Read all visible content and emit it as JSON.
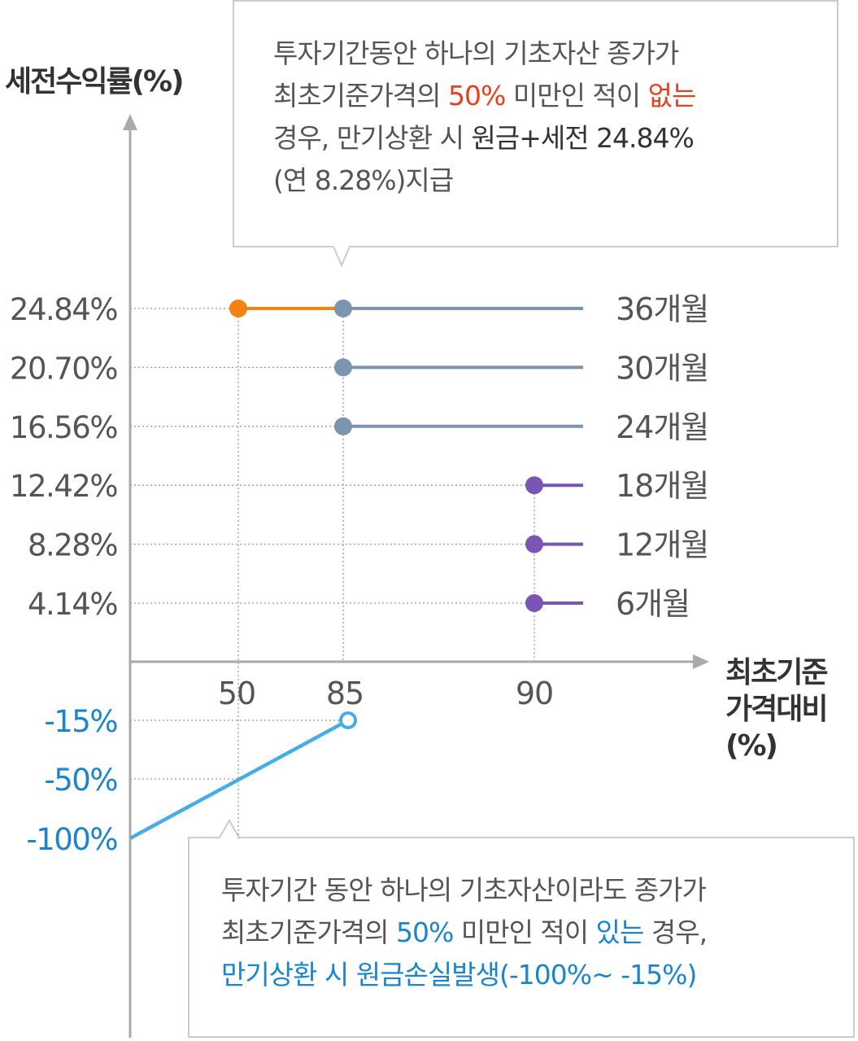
{
  "chart_data": {
    "type": "step",
    "ylabel": "세전수익률(%)",
    "xlabel_lines": [
      "최초기준",
      "가격대비",
      "(%)"
    ],
    "x_ticks": [
      "50",
      "85",
      "90"
    ],
    "positive_levels": [
      {
        "label": "24.84%",
        "value": 24.84,
        "period": "36개월",
        "barrier_start": 50,
        "barrier": 85,
        "color": "#7b94b0"
      },
      {
        "label": "20.70%",
        "value": 20.7,
        "period": "30개월",
        "barrier": 85,
        "color": "#7b94b0"
      },
      {
        "label": "16.56%",
        "value": 16.56,
        "period": "24개월",
        "barrier": 85,
        "color": "#7b94b0"
      },
      {
        "label": "12.42%",
        "value": 12.42,
        "period": "18개월",
        "barrier": 90,
        "color": "#7a55b4"
      },
      {
        "label": "8.28%",
        "value": 8.28,
        "period": "12개월",
        "barrier": 90,
        "color": "#7a55b4"
      },
      {
        "label": "4.14%",
        "value": 4.14,
        "period": "6개월",
        "barrier": 90,
        "color": "#7a55b4"
      }
    ],
    "knock_in_segment": {
      "x": [
        50,
        85
      ],
      "color": "#f5820f"
    },
    "loss_levels": [
      {
        "label": "-15%",
        "value": -15
      },
      {
        "label": "-50%",
        "value": -50
      },
      {
        "label": "-100%",
        "value": -100
      }
    ],
    "loss_line": {
      "from": {
        "x": 0,
        "y": -100
      },
      "to": {
        "x": 85,
        "y": -15
      },
      "color": "#45aee6"
    },
    "axis_color": "#aaaaaa",
    "label_color": "#555555",
    "loss_label_color": "#1a84cf"
  },
  "callout_top": {
    "lines": [
      [
        {
          "t": "투자기간동안 하나의 기초자산 종가가",
          "c": ""
        }
      ],
      [
        {
          "t": "최초기준가격의 ",
          "c": ""
        },
        {
          "t": "50%",
          "c": "red"
        },
        {
          "t": " 미만인 적이 ",
          "c": ""
        },
        {
          "t": "없는",
          "c": "red"
        }
      ],
      [
        {
          "t": "경우, 만기상환 시 ",
          "c": ""
        },
        {
          "t": "원금+세전 24.84%",
          "c": "dark"
        }
      ],
      [
        {
          "t": "(연 8.28%)지급",
          "c": ""
        }
      ]
    ]
  },
  "callout_bottom": {
    "lines": [
      [
        {
          "t": "투자기간 동안 하나의 기초자산이라도 종가가",
          "c": ""
        }
      ],
      [
        {
          "t": "최초기준가격의 ",
          "c": ""
        },
        {
          "t": "50%",
          "c": "blue"
        },
        {
          "t": " 미만인 적이 ",
          "c": ""
        },
        {
          "t": "있는",
          "c": "blue"
        },
        {
          "t": " 경우,",
          "c": ""
        }
      ],
      [
        {
          "t": "만기상환 시 원금손실발생(-100%~ -15%)",
          "c": "blue"
        }
      ]
    ]
  }
}
